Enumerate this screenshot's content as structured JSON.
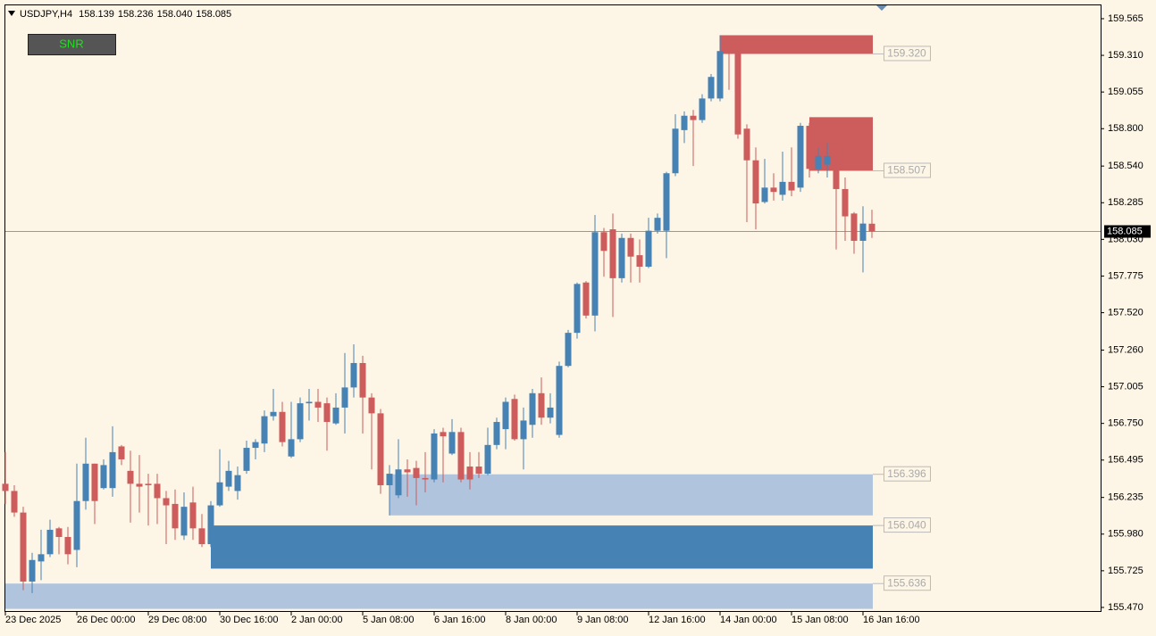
{
  "chart_data": {
    "type": "candlestick",
    "symbol": "USDJPY,H4",
    "quote": {
      "values": [
        158.139,
        158.236,
        158.04,
        158.085
      ],
      "value_labels": [
        "158.139",
        "158.236",
        "158.040",
        "158.085"
      ]
    },
    "button": "SNR",
    "up_color": "#4682b4",
    "down_color": "#cd5c5c",
    "grid": false,
    "categories": [
      "23 Dec 2025",
      null,
      null,
      null,
      null,
      null,
      null,
      null,
      "26 Dec 00:00",
      null,
      null,
      null,
      null,
      null,
      null,
      null,
      "29 Dec 08:00",
      null,
      null,
      null,
      null,
      null,
      null,
      null,
      "30 Dec 16:00",
      null,
      null,
      null,
      null,
      null,
      null,
      null,
      "2 Jan 00:00",
      null,
      null,
      null,
      null,
      null,
      null,
      null,
      "5 Jan 08:00",
      null,
      null,
      null,
      null,
      null,
      null,
      null,
      "6 Jan 16:00",
      null,
      null,
      null,
      null,
      null,
      null,
      null,
      "8 Jan 00:00",
      null,
      null,
      null,
      null,
      null,
      null,
      null,
      "9 Jan 08:00",
      null,
      null,
      null,
      null,
      null,
      null,
      null,
      "12 Jan 16:00",
      null,
      null,
      null,
      null,
      null,
      null,
      null,
      "14 Jan 00:00",
      null,
      null,
      null,
      null,
      null,
      null,
      null,
      "15 Jan 08:00",
      null,
      null,
      null,
      null,
      null,
      null,
      null,
      "16 Jan 16:00",
      null
    ],
    "open": [
      156.33,
      156.28,
      156.13,
      155.65,
      155.79,
      155.84,
      156.02,
      155.96,
      155.87,
      156.21,
      156.47,
      156.3,
      156.3,
      156.59,
      156.42,
      156.33,
      156.33,
      156.33,
      156.23,
      156.19,
      155.97,
      156.2,
      156.02,
      155.91,
      156.18,
      156.31,
      156.28,
      156.42,
      156.58,
      156.61,
      156.8,
      156.83,
      156.52,
      156.64,
      156.89,
      156.9,
      156.89,
      156.75,
      156.86,
      157.0,
      157.17,
      156.93,
      156.82,
      156.32,
      156.25,
      156.43,
      156.44,
      156.37,
      156.36,
      156.69,
      156.54,
      156.69,
      156.45,
      156.45,
      156.4,
      156.6,
      156.71,
      156.92,
      156.64,
      156.74,
      156.96,
      156.79,
      156.67,
      157.15,
      157.38,
      157.73,
      157.5,
      158.08,
      158.1,
      157.76,
      158.04,
      157.92,
      157.84,
      158.09,
      158.09,
      158.49,
      158.79,
      158.89,
      158.86,
      159.01,
      159.01,
      159.37,
      159.33,
      158.8,
      158.58,
      158.29,
      158.39,
      158.34,
      158.43,
      158.39,
      158.82,
      158.52,
      158.55,
      158.52,
      158.38,
      158.21,
      158.02,
      158.139
    ],
    "high": [
      156.55,
      156.32,
      156.17,
      155.85,
      156.01,
      156.08,
      156.03,
      156.03,
      156.47,
      156.65,
      156.47,
      156.5,
      156.73,
      156.6,
      156.56,
      156.53,
      156.4,
      156.4,
      156.28,
      156.29,
      156.27,
      156.31,
      156.12,
      156.21,
      156.57,
      156.49,
      156.45,
      156.63,
      156.64,
      156.84,
      156.99,
      156.9,
      156.9,
      156.93,
      156.99,
      156.99,
      156.93,
      156.96,
      157.24,
      157.3,
      157.22,
      156.96,
      156.85,
      156.46,
      156.64,
      156.5,
      156.49,
      156.55,
      156.71,
      156.72,
      156.78,
      156.72,
      156.55,
      156.55,
      156.72,
      156.79,
      156.93,
      156.95,
      156.86,
      156.99,
      157.07,
      156.96,
      157.18,
      157.4,
      157.73,
      157.74,
      158.2,
      158.11,
      158.21,
      158.07,
      158.07,
      158.03,
      158.18,
      158.21,
      158.5,
      158.9,
      158.92,
      158.93,
      159.04,
      159.18,
      159.45,
      159.41,
      159.35,
      158.83,
      158.67,
      158.59,
      158.49,
      158.64,
      158.67,
      158.84,
      158.84,
      158.67,
      158.7,
      158.55,
      158.46,
      158.22,
      158.26,
      158.236
    ],
    "low": [
      156.19,
      156.1,
      155.59,
      155.57,
      155.66,
      155.82,
      155.84,
      155.77,
      155.75,
      156.15,
      156.05,
      156.29,
      156.24,
      156.46,
      156.06,
      156.13,
      156.04,
      156.05,
      155.91,
      155.94,
      155.94,
      155.94,
      155.89,
      155.89,
      156.17,
      156.28,
      156.22,
      156.4,
      156.5,
      156.55,
      156.77,
      156.59,
      156.51,
      156.62,
      156.77,
      156.76,
      156.56,
      156.74,
      156.68,
      156.93,
      156.68,
      156.43,
      156.26,
      156.11,
      156.23,
      156.24,
      156.18,
      156.27,
      156.34,
      156.34,
      156.53,
      156.34,
      156.29,
      156.37,
      156.39,
      156.57,
      156.57,
      156.63,
      156.43,
      156.65,
      156.74,
      156.75,
      156.65,
      157.14,
      157.34,
      157.48,
      157.39,
      157.77,
      157.49,
      157.73,
      157.73,
      157.73,
      157.83,
      158.07,
      157.9,
      158.47,
      158.7,
      158.54,
      158.84,
      158.99,
      158.99,
      159.07,
      158.73,
      158.15,
      158.1,
      158.28,
      158.3,
      158.3,
      158.33,
      158.36,
      158.46,
      158.49,
      158.46,
      157.96,
      158.02,
      157.93,
      157.8,
      158.04
    ],
    "close": [
      156.28,
      156.13,
      155.65,
      155.8,
      155.84,
      156.01,
      155.96,
      155.84,
      156.21,
      156.47,
      156.21,
      156.46,
      156.55,
      156.5,
      156.33,
      156.31,
      156.32,
      156.23,
      156.18,
      156.02,
      156.17,
      156.02,
      155.91,
      156.18,
      156.34,
      156.42,
      156.39,
      156.58,
      156.62,
      156.8,
      156.83,
      156.62,
      156.64,
      156.89,
      156.9,
      156.86,
      156.76,
      156.86,
      157.0,
      157.17,
      156.93,
      156.82,
      156.32,
      156.4,
      156.43,
      156.41,
      156.37,
      156.36,
      156.68,
      156.66,
      156.69,
      156.36,
      156.36,
      156.4,
      156.6,
      156.76,
      156.9,
      156.64,
      156.77,
      156.96,
      156.79,
      156.86,
      157.15,
      157.38,
      157.72,
      157.5,
      158.08,
      157.95,
      157.76,
      158.04,
      157.91,
      157.84,
      158.09,
      158.18,
      158.49,
      158.8,
      158.89,
      158.86,
      159.01,
      159.16,
      159.34,
      159.32,
      158.76,
      158.58,
      158.28,
      158.39,
      158.36,
      158.43,
      158.37,
      158.82,
      158.52,
      158.61,
      158.61,
      158.38,
      158.19,
      158.02,
      158.14,
      158.085
    ],
    "zones": [
      {
        "start": 80,
        "edge": 159.45,
        "level": {
          "value": 159.32,
          "label": "159.320"
        },
        "color": "#cd5c5c"
      },
      {
        "start": 90,
        "edge": 158.88,
        "level": {
          "value": 158.507,
          "label": "158.507"
        },
        "color": "#cd5c5c"
      },
      {
        "start": 43,
        "edge": 156.11,
        "level": {
          "value": 156.396,
          "label": "156.396"
        },
        "color": "#b0c4de"
      },
      {
        "start": 23,
        "edge": 155.74,
        "level": {
          "value": 156.04,
          "label": "156.040"
        },
        "color": "#4682b4"
      },
      {
        "start": 0,
        "edge": 155.46,
        "level": {
          "value": 155.636,
          "label": "155.636"
        },
        "color": "#b0c4de"
      }
    ],
    "ylim": [
      155.445,
      159.664
    ],
    "yticks": [
      {
        "value": 159.565,
        "label": "159.565"
      },
      {
        "value": 159.31,
        "label": "159.310"
      },
      159.055,
      {
        "value": 158.8,
        "label": "158.800"
      },
      {
        "value": 158.54,
        "label": "158.540"
      },
      158.285,
      {
        "value": 158.03,
        "label": "158.030"
      },
      157.775,
      {
        "value": 157.52,
        "label": "157.520"
      },
      {
        "value": 157.26,
        "label": "157.260"
      },
      157.005,
      {
        "value": 156.75,
        "label": "156.750"
      },
      156.495,
      156.235,
      {
        "value": 155.98,
        "label": "155.980"
      },
      155.725,
      {
        "value": 155.47,
        "label": "155.470"
      }
    ]
  }
}
